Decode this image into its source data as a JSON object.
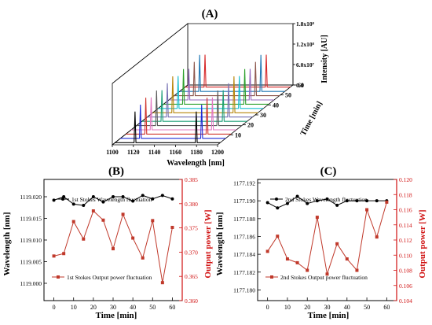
{
  "colors": {
    "wavelength_series": "#000000",
    "power_series": "#c0392b",
    "right_axis": "#d01010",
    "waterfall_lines": [
      "#000000",
      "#1f2bd6",
      "#d0342c",
      "#e377c2",
      "#5b5b5b",
      "#1b9e77",
      "#7570b3",
      "#b8860b",
      "#17becf",
      "#2ca02c",
      "#9467bd",
      "#8c564b",
      "#1f77b4",
      "#d62728"
    ]
  },
  "chart_data": [
    {
      "type": "waterfall",
      "panel_label": "(A)",
      "title": "",
      "xlabel": "Wavelength [nm]",
      "ylabel": "Time [min]",
      "zlabel": "Intensity [AU]",
      "x_ticks": [
        "1100",
        "1120",
        "1140",
        "1160",
        "1180",
        "1200"
      ],
      "x_range": [
        1100,
        1200
      ],
      "y_ticks": [
        "10",
        "20",
        "30",
        "40",
        "50",
        "60"
      ],
      "y_range": [
        0,
        60
      ],
      "z_ticks": [
        "0.0",
        "6.0x10⁷",
        "1.2x10⁸",
        "1.8x10⁸"
      ],
      "z_range": [
        0,
        180000000
      ],
      "peaks": [
        {
          "wavelength": 1119.0,
          "relative_intensity": 0.55
        },
        {
          "wavelength": 1177.2,
          "relative_intensity": 0.55
        }
      ],
      "traces_count": 14
    },
    {
      "type": "line",
      "panel_label": "(B)",
      "xlabel": "Time [min]",
      "ylabel": "Wavelength [nm]",
      "y2label": "Output power [W]",
      "x": [
        0,
        5,
        10,
        15,
        20,
        25,
        30,
        35,
        40,
        45,
        50,
        55,
        60
      ],
      "xlim": [
        -5,
        65
      ],
      "x_ticks": [
        "0",
        "10",
        "20",
        "30",
        "40",
        "50",
        "60"
      ],
      "ylim": [
        1118.996,
        1119.024
      ],
      "y_ticks": [
        "1119.000",
        "1119.005",
        "1119.010",
        "1119.015",
        "1119.020"
      ],
      "y2lim": [
        0.36,
        0.385
      ],
      "y2_ticks": [
        "0.360",
        "0.365",
        "0.370",
        "0.375",
        "0.380",
        "0.385"
      ],
      "series": [
        {
          "name": "1st Stokes Wavelength fluctuation",
          "axis": "left",
          "marker": "circle",
          "values": [
            1119.0192,
            1119.02,
            1119.0183,
            1119.018,
            1119.02,
            1119.0188,
            1119.02,
            1119.02,
            1119.019,
            1119.0203,
            1119.0195,
            1119.0203,
            1119.0195
          ]
        },
        {
          "name": "1st Stokes Output power fluctuation",
          "axis": "right",
          "marker": "square",
          "values": [
            0.3692,
            0.3697,
            0.3763,
            0.3727,
            0.3785,
            0.3766,
            0.3707,
            0.3778,
            0.3729,
            0.3688,
            0.3765,
            0.3637,
            0.3751
          ]
        }
      ],
      "legend": "left"
    },
    {
      "type": "line",
      "panel_label": "(C)",
      "xlabel": "Time [min]",
      "ylabel": "Wavelength [nm]",
      "y2label": "Output power [W]",
      "x": [
        0,
        5,
        10,
        15,
        20,
        25,
        30,
        35,
        40,
        45,
        50,
        55,
        60
      ],
      "xlim": [
        -5,
        65
      ],
      "x_ticks": [
        "0",
        "10",
        "20",
        "30",
        "40",
        "50",
        "60"
      ],
      "ylim": [
        1177.1788,
        1177.1924
      ],
      "y_ticks": [
        "1177.180",
        "1177.182",
        "1177.184",
        "1177.186",
        "1177.188",
        "1177.190",
        "1177.192"
      ],
      "y2lim": [
        0.104,
        0.12
      ],
      "y2_ticks": [
        "0.104",
        "0.106",
        "0.108",
        "0.110",
        "0.112",
        "0.114",
        "0.116",
        "0.118",
        "0.120"
      ],
      "series": [
        {
          "name": "2nd Stokes  Wavelength fluctuation",
          "axis": "left",
          "marker": "circle",
          "values": [
            1177.1898,
            1177.1892,
            1177.1897,
            1177.1905,
            1177.1897,
            1177.19,
            1177.1902,
            1177.1895,
            1177.19,
            1177.19,
            1177.19,
            1177.19,
            1177.19
          ]
        },
        {
          "name": "2nd Stokes Output power fluctuation",
          "axis": "right",
          "marker": "square",
          "values": [
            0.1105,
            0.1125,
            0.1095,
            0.109,
            0.108,
            0.115,
            0.1075,
            0.1115,
            0.1095,
            0.108,
            0.116,
            0.1124,
            0.117
          ]
        }
      ],
      "legend": "left"
    }
  ]
}
